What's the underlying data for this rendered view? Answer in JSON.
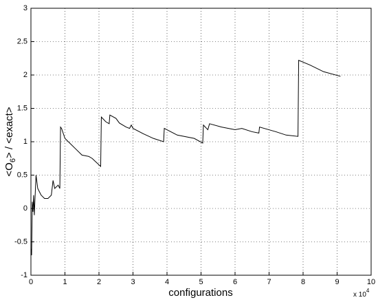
{
  "chart_data": {
    "type": "line",
    "x_label": "configurations",
    "y_label": {
      "before": "<O",
      "subscript": "6",
      "after": "> / <exact>"
    },
    "x_scale_label": {
      "base": "x 10",
      "exponent": "4"
    },
    "x": [
      0,
      0.02,
      0.04,
      0.06,
      0.08,
      0.1,
      0.12,
      0.15,
      0.2,
      0.25,
      0.3,
      0.4,
      0.5,
      0.6,
      0.65,
      0.7,
      0.8,
      0.85,
      0.87,
      0.9,
      1.0,
      1.1,
      1.3,
      1.5,
      1.7,
      1.8,
      2.05,
      2.07,
      2.2,
      2.3,
      2.32,
      2.5,
      2.6,
      2.8,
      2.9,
      2.95,
      3.0,
      3.3,
      3.6,
      3.9,
      3.92,
      4.3,
      4.8,
      5.05,
      5.07,
      5.2,
      5.25,
      5.6,
      6.0,
      6.2,
      6.5,
      6.7,
      6.72,
      7.2,
      7.5,
      7.85,
      7.87,
      8.2,
      8.6,
      9.1
    ],
    "series": [
      {
        "color": "#000000",
        "values": [
          -0.6,
          -0.7,
          0.1,
          -0.05,
          0.2,
          -0.1,
          0.15,
          0.5,
          0.3,
          0.25,
          0.2,
          0.15,
          0.15,
          0.2,
          0.42,
          0.3,
          0.35,
          0.3,
          1.22,
          1.2,
          1.05,
          1.0,
          0.9,
          0.8,
          0.78,
          0.75,
          0.63,
          1.37,
          1.3,
          1.27,
          1.4,
          1.35,
          1.28,
          1.22,
          1.2,
          1.25,
          1.2,
          1.12,
          1.05,
          1.0,
          1.2,
          1.1,
          1.05,
          0.98,
          1.25,
          1.18,
          1.27,
          1.22,
          1.18,
          1.2,
          1.15,
          1.13,
          1.22,
          1.15,
          1.1,
          1.08,
          2.22,
          2.15,
          2.05,
          1.98
        ]
      }
    ],
    "xlim": [
      0,
      10
    ],
    "ylim": [
      -1,
      3
    ],
    "xticks": [
      0,
      1,
      2,
      3,
      4,
      5,
      6,
      7,
      8,
      9,
      10
    ],
    "yticks": [
      -1,
      -0.5,
      0,
      0.5,
      1,
      1.5,
      2,
      2.5,
      3
    ],
    "grid": true
  }
}
